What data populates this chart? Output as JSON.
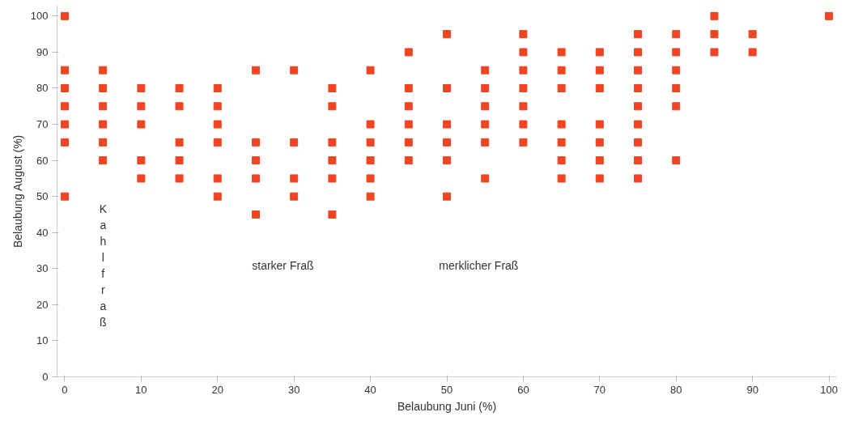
{
  "chart_data": {
    "type": "scatter",
    "xlabel": "Belaubung Juni (%)",
    "ylabel": "Belaubung August (%)",
    "marker": "square",
    "grid": false,
    "xlim": [
      -1,
      101
    ],
    "ylim": [
      0,
      103
    ],
    "xticks": [
      0,
      10,
      20,
      30,
      40,
      50,
      60,
      70,
      80,
      90,
      100
    ],
    "yticks": [
      0,
      10,
      20,
      30,
      40,
      50,
      60,
      70,
      80,
      90,
      100
    ],
    "annotations": [
      "Kahlfraß",
      "starker Fraß",
      "merklicher Fraß"
    ],
    "series": [
      {
        "color": "#f04422",
        "x": [
          0,
          0,
          0,
          0,
          0,
          0,
          0,
          5,
          5,
          5,
          5,
          5,
          5,
          10,
          10,
          10,
          10,
          10,
          15,
          15,
          15,
          15,
          15,
          20,
          20,
          20,
          20,
          20,
          20,
          25,
          25,
          25,
          25,
          25,
          30,
          30,
          30,
          30,
          35,
          35,
          35,
          35,
          35,
          35,
          40,
          40,
          40,
          40,
          40,
          40,
          45,
          45,
          45,
          45,
          45,
          45,
          50,
          50,
          50,
          50,
          50,
          50,
          55,
          55,
          55,
          55,
          55,
          55,
          60,
          60,
          60,
          60,
          60,
          60,
          60,
          65,
          65,
          65,
          65,
          65,
          65,
          65,
          70,
          70,
          70,
          70,
          70,
          70,
          70,
          75,
          75,
          75,
          75,
          75,
          75,
          75,
          75,
          75,
          80,
          80,
          80,
          80,
          80,
          80,
          85,
          85,
          85,
          90,
          90,
          100
        ],
        "values": [
          100,
          85,
          80,
          75,
          70,
          65,
          50,
          85,
          80,
          75,
          70,
          65,
          60,
          80,
          75,
          70,
          60,
          55,
          80,
          75,
          65,
          60,
          55,
          80,
          75,
          70,
          65,
          55,
          50,
          85,
          65,
          60,
          55,
          45,
          85,
          65,
          55,
          50,
          80,
          75,
          65,
          60,
          55,
          45,
          85,
          70,
          65,
          60,
          55,
          50,
          90,
          80,
          75,
          70,
          65,
          60,
          95,
          80,
          70,
          65,
          60,
          50,
          85,
          80,
          75,
          70,
          65,
          55,
          95,
          90,
          85,
          80,
          75,
          70,
          65,
          90,
          85,
          80,
          70,
          65,
          60,
          55,
          90,
          85,
          80,
          70,
          65,
          60,
          55,
          95,
          90,
          85,
          80,
          75,
          70,
          65,
          60,
          55,
          95,
          90,
          85,
          80,
          75,
          60,
          100,
          95,
          90,
          95,
          90,
          100
        ]
      }
    ]
  }
}
